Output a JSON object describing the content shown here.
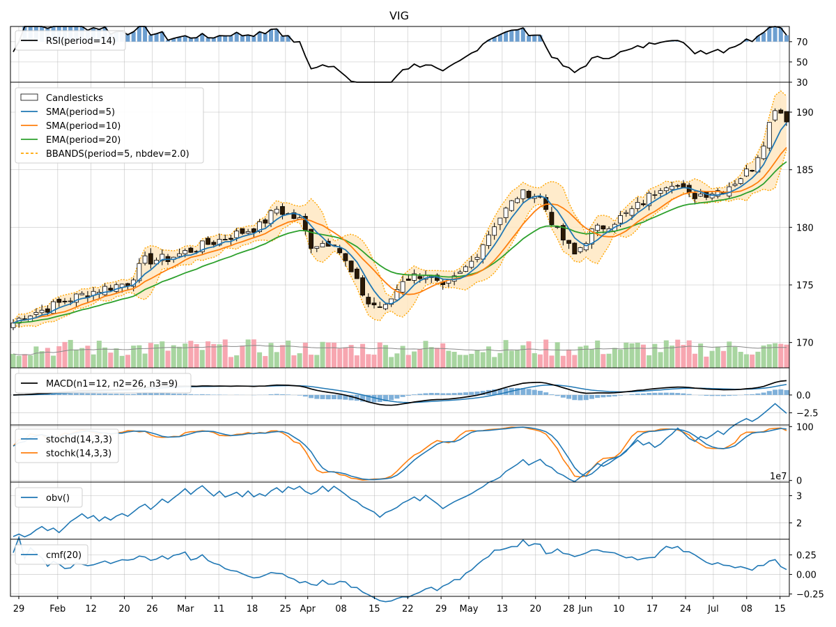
{
  "title": "VIG",
  "colors": {
    "sma5": "#1f77b4",
    "sma10": "#ff7f0e",
    "ema20": "#2ca02c",
    "bbands": "#ffa500",
    "band_fill": "#ffe8c2",
    "vol_up": "#a8d5a0",
    "vol_down": "#f7a6b0",
    "macd_hist": "#7fb0d9",
    "candle_up": "#ffffff",
    "candle_down": "#2b1a05",
    "rsi_fill": "#6d9fd0"
  },
  "panels": {
    "rsi": {
      "legend": "RSI(period=14)",
      "yticks": [
        "70",
        "50",
        "30"
      ]
    },
    "price": {
      "legend": [
        "Candlesticks",
        "SMA(period=5)",
        "SMA(period=10)",
        "EMA(period=20)",
        "BBANDS(period=5, nbdev=2.0)"
      ],
      "yticks": [
        "190",
        "185",
        "180",
        "175",
        "170"
      ]
    },
    "macd": {
      "legend": "MACD(n1=12, n2=26, n3=9)",
      "yticks": [
        "0.0",
        "−2.5"
      ]
    },
    "stoch": {
      "legend": [
        "stochd(14,3,3)",
        "stochk(14,3,3)"
      ],
      "yticks": [
        "100",
        "0"
      ]
    },
    "obv": {
      "legend": "obv()",
      "yticks": [
        "3",
        "2"
      ],
      "scale_label": "1e7"
    },
    "cmf": {
      "legend": "cmf(20)",
      "yticks": [
        "0.25",
        "0.00",
        "−0.25"
      ]
    }
  },
  "x_tick_labels": [
    "29",
    "Feb",
    "12",
    "20",
    "26",
    "Mar",
    "11",
    "18",
    "25",
    "Apr",
    "08",
    "15",
    "22",
    "29",
    "May",
    "13",
    "20",
    "28",
    "Jun",
    "10",
    "17",
    "24",
    "Jul",
    "08",
    "15"
  ],
  "chart_data": {
    "type": "candlestick",
    "ticker": "VIG",
    "x_ticks": [
      "29",
      "Feb",
      "12",
      "20",
      "26",
      "Mar",
      "11",
      "18",
      "25",
      "Apr",
      "08",
      "15",
      "22",
      "29",
      "May",
      "13",
      "20",
      "28",
      "Jun",
      "10",
      "17",
      "24",
      "Jul",
      "08",
      "15"
    ],
    "close_knots": [
      [
        0,
        171.7
      ],
      [
        2,
        172.4
      ],
      [
        5,
        172.8
      ],
      [
        10,
        173.8
      ],
      [
        15,
        174.6
      ],
      [
        20,
        175.2
      ],
      [
        23,
        177.1
      ],
      [
        27,
        177.3
      ],
      [
        32,
        178.2
      ],
      [
        37,
        179.1
      ],
      [
        43,
        180.1
      ],
      [
        46,
        181.6
      ],
      [
        50,
        180.6
      ],
      [
        52,
        178.5
      ],
      [
        56,
        178.8
      ],
      [
        59,
        176.0
      ],
      [
        62,
        173.4
      ],
      [
        65,
        173.0
      ],
      [
        68,
        175.5
      ],
      [
        72,
        176.0
      ],
      [
        75,
        174.6
      ],
      [
        78,
        175.9
      ],
      [
        80,
        177.0
      ],
      [
        84,
        180.3
      ],
      [
        88,
        182.7
      ],
      [
        90,
        183.0
      ],
      [
        92,
        182.6
      ],
      [
        95,
        179.6
      ],
      [
        98,
        177.6
      ],
      [
        101,
        179.6
      ],
      [
        104,
        180.3
      ],
      [
        107,
        181.1
      ],
      [
        110,
        182.2
      ],
      [
        113,
        183.6
      ],
      [
        115,
        184.0
      ],
      [
        118,
        182.7
      ],
      [
        121,
        183.0
      ],
      [
        124,
        183.3
      ],
      [
        126,
        184.0
      ],
      [
        129,
        185.2
      ],
      [
        131,
        187.5
      ],
      [
        133,
        190.5
      ],
      [
        135,
        189.5
      ]
    ],
    "volume_range": [
      0,
      4000000
    ],
    "ylim": [
      167.8,
      192.6
    ],
    "macd_ylim": [
      -4.2,
      3.8
    ],
    "stoch_ylim": [
      0,
      100
    ],
    "obv_ylim": [
      14000000,
      35000000
    ],
    "cmf_ylim": [
      -0.28,
      0.45
    ],
    "rsi_ylim": [
      30,
      85
    ]
  }
}
